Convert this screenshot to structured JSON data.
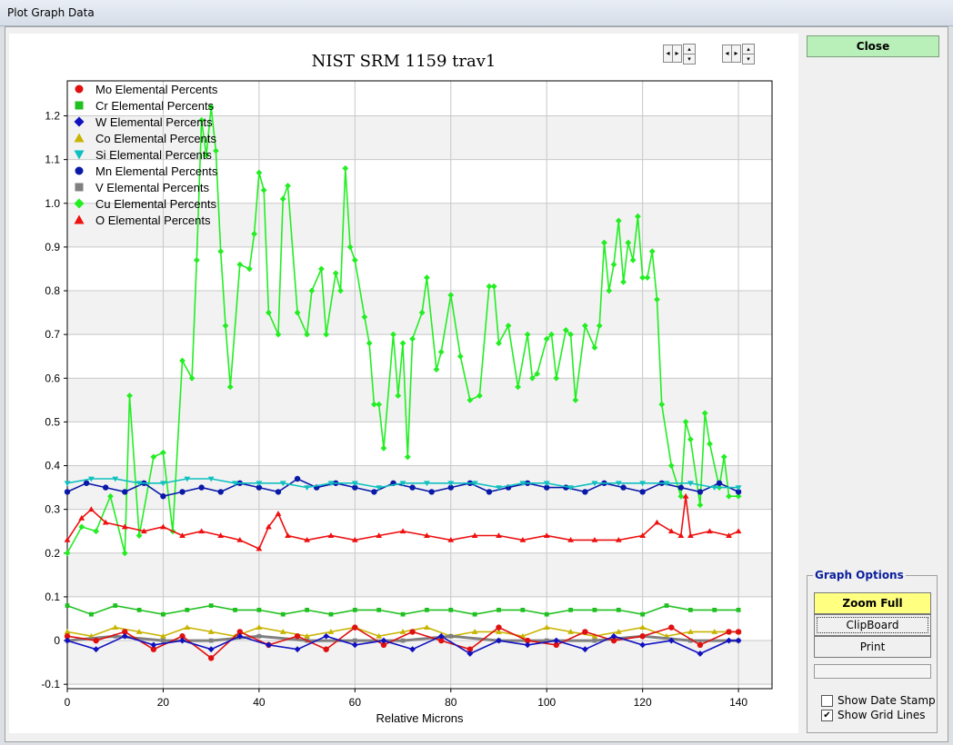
{
  "window": {
    "title": "Plot Graph Data"
  },
  "plot": {
    "title": "NIST SRM 1159 trav1",
    "xlabel": "Relative Microns"
  },
  "legend": [
    {
      "label": "Mo Elemental Percents",
      "color": "#e01010",
      "marker": "circle"
    },
    {
      "label": "Cr Elemental Percents",
      "color": "#20c020",
      "marker": "square"
    },
    {
      "label": "W  Elemental Percents",
      "color": "#1010c0",
      "marker": "diamond"
    },
    {
      "label": "Co Elemental Percents",
      "color": "#c8b400",
      "marker": "triangle-up"
    },
    {
      "label": "Si Elemental Percents",
      "color": "#10c0c0",
      "marker": "triangle-down"
    },
    {
      "label": "Mn Elemental Percents",
      "color": "#0a1aa8",
      "marker": "circle"
    },
    {
      "label": "V  Elemental Percents",
      "color": "#808080",
      "marker": "square"
    },
    {
      "label": "Cu Elemental Percents",
      "color": "#22ee22",
      "marker": "diamond"
    },
    {
      "label": "O  Elemental Percents",
      "color": "#ee1010",
      "marker": "triangle-up"
    }
  ],
  "chart_data": {
    "type": "line",
    "title": "NIST SRM 1159 trav1",
    "xlabel": "Relative Microns",
    "ylabel": "",
    "xlim": [
      0,
      147
    ],
    "ylim": [
      -0.11,
      1.28
    ],
    "x_ticks": [
      "0",
      "20",
      "40",
      "60",
      "80",
      "100",
      "120",
      "140"
    ],
    "y_ticks": [
      "-0.1",
      "0",
      "0.1",
      "0.2",
      "0.3",
      "0.4",
      "0.5",
      "0.6",
      "0.7",
      "0.8",
      "0.9",
      "1.0",
      "1.1",
      "1.2"
    ],
    "grid": true,
    "legend_position": "top-left",
    "series": [
      {
        "name": "Cu Elemental Percents",
        "color": "#22ee22",
        "x": [
          0,
          3,
          6,
          9,
          12,
          13,
          15,
          18,
          20,
          22,
          24,
          26,
          27,
          28,
          29,
          30,
          31,
          32,
          33,
          34,
          36,
          38,
          39,
          40,
          41,
          42,
          44,
          45,
          46,
          48,
          50,
          51,
          53,
          54,
          56,
          57,
          58,
          59,
          60,
          62,
          63,
          64,
          65,
          66,
          68,
          69,
          70,
          71,
          72,
          74,
          75,
          77,
          78,
          80,
          82,
          84,
          86,
          88,
          89,
          90,
          92,
          94,
          96,
          97,
          98,
          100,
          101,
          102,
          104,
          105,
          106,
          108,
          110,
          111,
          112,
          113,
          114,
          115,
          116,
          117,
          118,
          119,
          120,
          121,
          122,
          123,
          124,
          126,
          128,
          129,
          130,
          132,
          133,
          134,
          136,
          137,
          138,
          140
        ],
        "y": [
          0.2,
          0.26,
          0.25,
          0.33,
          0.2,
          0.56,
          0.24,
          0.42,
          0.43,
          0.25,
          0.64,
          0.6,
          0.87,
          1.19,
          1.11,
          1.22,
          1.12,
          0.89,
          0.72,
          0.58,
          0.86,
          0.85,
          0.93,
          1.07,
          1.03,
          0.75,
          0.7,
          1.01,
          1.04,
          0.75,
          0.7,
          0.8,
          0.85,
          0.7,
          0.84,
          0.8,
          1.08,
          0.9,
          0.87,
          0.74,
          0.68,
          0.54,
          0.54,
          0.44,
          0.7,
          0.56,
          0.68,
          0.42,
          0.69,
          0.75,
          0.83,
          0.62,
          0.66,
          0.79,
          0.65,
          0.55,
          0.56,
          0.81,
          0.81,
          0.68,
          0.72,
          0.58,
          0.7,
          0.6,
          0.61,
          0.69,
          0.7,
          0.6,
          0.71,
          0.7,
          0.55,
          0.72,
          0.67,
          0.72,
          0.91,
          0.8,
          0.86,
          0.96,
          0.82,
          0.91,
          0.87,
          0.97,
          0.83,
          0.83,
          0.89,
          0.78,
          0.54,
          0.4,
          0.33,
          0.5,
          0.46,
          0.31,
          0.52,
          0.45,
          0.35,
          0.42,
          0.33,
          0.33
        ]
      },
      {
        "name": "Mn Elemental Percents",
        "color": "#0a1aa8",
        "x": [
          0,
          4,
          8,
          12,
          16,
          20,
          24,
          28,
          32,
          36,
          40,
          44,
          48,
          52,
          56,
          60,
          64,
          68,
          72,
          76,
          80,
          84,
          88,
          92,
          96,
          100,
          104,
          108,
          112,
          116,
          120,
          124,
          128,
          132,
          136,
          140
        ],
        "y": [
          0.34,
          0.36,
          0.35,
          0.34,
          0.36,
          0.33,
          0.34,
          0.35,
          0.34,
          0.36,
          0.35,
          0.34,
          0.37,
          0.35,
          0.36,
          0.35,
          0.34,
          0.36,
          0.35,
          0.34,
          0.35,
          0.36,
          0.34,
          0.35,
          0.36,
          0.35,
          0.35,
          0.34,
          0.36,
          0.35,
          0.34,
          0.36,
          0.35,
          0.34,
          0.36,
          0.34
        ]
      },
      {
        "name": "Si Elemental Percents",
        "color": "#10c0c0",
        "x": [
          0,
          5,
          10,
          15,
          20,
          25,
          30,
          35,
          40,
          45,
          50,
          55,
          60,
          65,
          70,
          75,
          80,
          85,
          90,
          95,
          100,
          105,
          110,
          115,
          120,
          125,
          130,
          135,
          140
        ],
        "y": [
          0.36,
          0.37,
          0.37,
          0.36,
          0.36,
          0.37,
          0.37,
          0.36,
          0.36,
          0.36,
          0.35,
          0.36,
          0.36,
          0.35,
          0.36,
          0.36,
          0.36,
          0.36,
          0.35,
          0.36,
          0.36,
          0.35,
          0.36,
          0.36,
          0.36,
          0.36,
          0.36,
          0.35,
          0.35
        ]
      },
      {
        "name": "O  Elemental Percents",
        "color": "#ee1010",
        "x": [
          0,
          3,
          5,
          8,
          12,
          16,
          20,
          24,
          28,
          32,
          36,
          40,
          42,
          44,
          46,
          50,
          55,
          60,
          65,
          70,
          75,
          80,
          85,
          90,
          95,
          100,
          105,
          110,
          115,
          120,
          123,
          126,
          128,
          129,
          130,
          134,
          138,
          140
        ],
        "y": [
          0.23,
          0.28,
          0.3,
          0.27,
          0.26,
          0.25,
          0.26,
          0.24,
          0.25,
          0.24,
          0.23,
          0.21,
          0.26,
          0.29,
          0.24,
          0.23,
          0.24,
          0.23,
          0.24,
          0.25,
          0.24,
          0.23,
          0.24,
          0.24,
          0.23,
          0.24,
          0.23,
          0.23,
          0.23,
          0.24,
          0.27,
          0.25,
          0.24,
          0.33,
          0.24,
          0.25,
          0.24,
          0.25
        ]
      },
      {
        "name": "Cr Elemental Percents",
        "color": "#20c020",
        "x": [
          0,
          5,
          10,
          15,
          20,
          25,
          30,
          35,
          40,
          45,
          50,
          55,
          60,
          65,
          70,
          75,
          80,
          85,
          90,
          95,
          100,
          105,
          110,
          115,
          120,
          125,
          130,
          135,
          140
        ],
        "y": [
          0.08,
          0.06,
          0.08,
          0.07,
          0.06,
          0.07,
          0.08,
          0.07,
          0.07,
          0.06,
          0.07,
          0.06,
          0.07,
          0.07,
          0.06,
          0.07,
          0.07,
          0.06,
          0.07,
          0.07,
          0.06,
          0.07,
          0.07,
          0.07,
          0.06,
          0.08,
          0.07,
          0.07,
          0.07
        ]
      },
      {
        "name": "Co Elemental Percents",
        "color": "#c8b400",
        "x": [
          0,
          5,
          10,
          15,
          20,
          25,
          30,
          35,
          40,
          45,
          50,
          55,
          60,
          65,
          70,
          75,
          80,
          85,
          90,
          95,
          100,
          105,
          110,
          115,
          120,
          125,
          130,
          135,
          140
        ],
        "y": [
          0.02,
          0.01,
          0.03,
          0.02,
          0.01,
          0.03,
          0.02,
          0.01,
          0.03,
          0.02,
          0.01,
          0.02,
          0.03,
          0.01,
          0.02,
          0.03,
          0.01,
          0.02,
          0.02,
          0.01,
          0.03,
          0.02,
          0.01,
          0.02,
          0.03,
          0.01,
          0.02,
          0.02,
          0.02
        ]
      },
      {
        "name": "V  Elemental Percents",
        "color": "#808080",
        "x": [
          0,
          10,
          20,
          30,
          40,
          50,
          60,
          70,
          80,
          90,
          100,
          110,
          120,
          130,
          140
        ],
        "y": [
          0.0,
          0.01,
          0.0,
          0.0,
          0.01,
          0.0,
          0.0,
          0.0,
          0.01,
          0.0,
          0.0,
          0.0,
          0.01,
          0.0,
          0.0
        ]
      },
      {
        "name": "Mo Elemental Percents",
        "color": "#e01010",
        "x": [
          0,
          6,
          12,
          18,
          24,
          30,
          36,
          42,
          48,
          54,
          60,
          66,
          72,
          78,
          84,
          90,
          96,
          102,
          108,
          114,
          120,
          126,
          132,
          138,
          140
        ],
        "y": [
          0.01,
          0.0,
          0.02,
          -0.02,
          0.01,
          -0.04,
          0.02,
          -0.01,
          0.01,
          -0.02,
          0.03,
          -0.01,
          0.02,
          0.0,
          -0.02,
          0.03,
          0.0,
          -0.01,
          0.02,
          0.0,
          0.01,
          0.03,
          -0.01,
          0.02,
          0.02
        ]
      },
      {
        "name": "W  Elemental Percents",
        "color": "#1010c0",
        "x": [
          0,
          6,
          12,
          18,
          24,
          30,
          36,
          42,
          48,
          54,
          60,
          66,
          72,
          78,
          84,
          90,
          96,
          102,
          108,
          114,
          120,
          126,
          132,
          138,
          140
        ],
        "y": [
          0.0,
          -0.02,
          0.01,
          -0.01,
          0.0,
          -0.02,
          0.01,
          -0.01,
          -0.02,
          0.01,
          -0.01,
          0.0,
          -0.02,
          0.01,
          -0.03,
          0.0,
          -0.01,
          0.0,
          -0.02,
          0.01,
          -0.01,
          0.0,
          -0.03,
          0.0,
          0.0
        ]
      }
    ]
  },
  "sidebar": {
    "close_label": "Close",
    "graph_options_title": "Graph Options",
    "zoom_full_label": "Zoom Full",
    "clipboard_label": "ClipBoard",
    "print_label": "Print",
    "show_date_stamp_label": "Show Date Stamp",
    "show_date_stamp_checked": false,
    "show_grid_lines_label": "Show Grid Lines",
    "show_grid_lines_checked": true
  }
}
